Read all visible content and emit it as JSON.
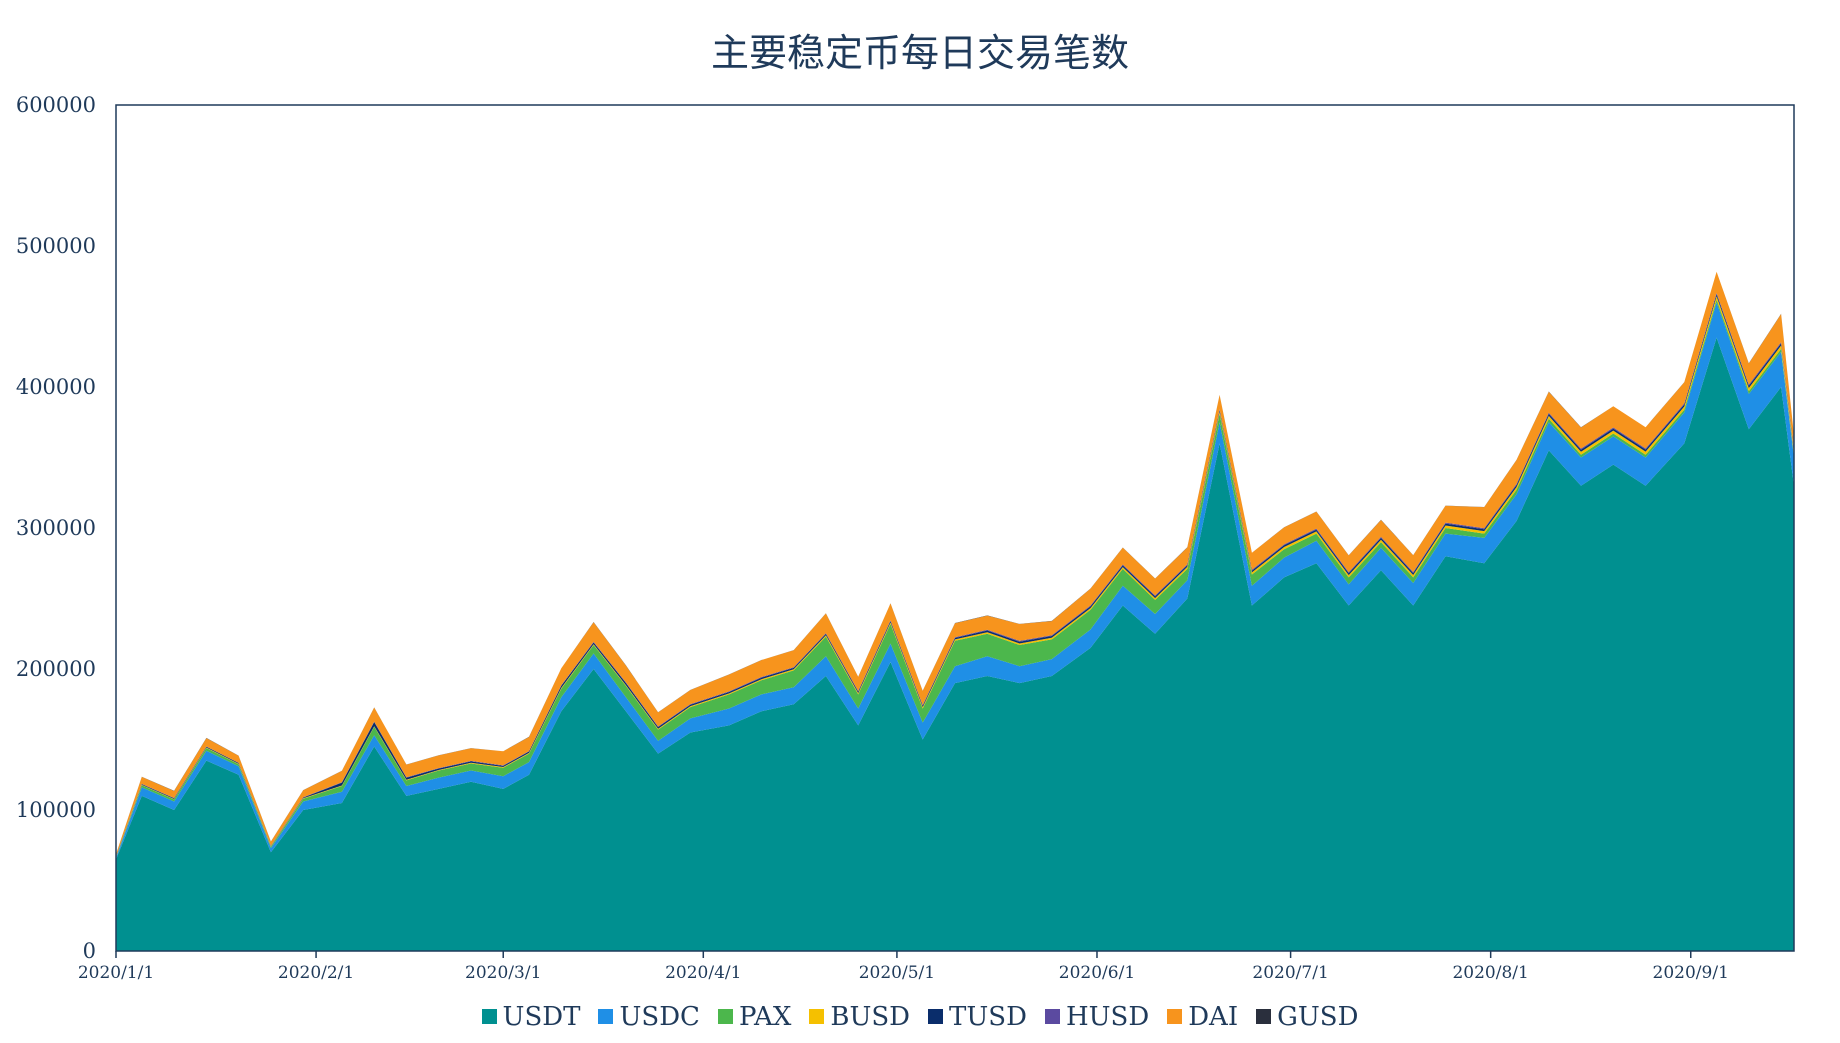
{
  "chart_data": {
    "type": "area",
    "stacked": true,
    "title": "主要稳定币每日交易笔数",
    "xlabel": "",
    "ylabel": "",
    "ylim": [
      0,
      600000
    ],
    "yticks": [
      0,
      100000,
      200000,
      300000,
      400000,
      500000,
      600000
    ],
    "xtick_labels": [
      "2020/1/1",
      "2020/2/1",
      "2020/3/1",
      "2020/4/1",
      "2020/5/1",
      "2020/6/1",
      "2020/7/1",
      "2020/8/1",
      "2020/9/1"
    ],
    "xtick_days": [
      0,
      31,
      60,
      91,
      121,
      152,
      182,
      213,
      244
    ],
    "grid": false,
    "legend_position": "bottom",
    "dates": [
      "2020-01-01",
      "2020-01-05",
      "2020-01-10",
      "2020-01-15",
      "2020-01-20",
      "2020-01-25",
      "2020-01-30",
      "2020-02-05",
      "2020-02-10",
      "2020-02-15",
      "2020-02-20",
      "2020-02-25",
      "2020-03-01",
      "2020-03-05",
      "2020-03-10",
      "2020-03-15",
      "2020-03-20",
      "2020-03-25",
      "2020-03-30",
      "2020-04-05",
      "2020-04-10",
      "2020-04-15",
      "2020-04-20",
      "2020-04-25",
      "2020-04-30",
      "2020-05-05",
      "2020-05-10",
      "2020-05-15",
      "2020-05-20",
      "2020-05-25",
      "2020-05-31",
      "2020-06-05",
      "2020-06-10",
      "2020-06-15",
      "2020-06-20",
      "2020-06-25",
      "2020-06-30",
      "2020-07-05",
      "2020-07-10",
      "2020-07-15",
      "2020-07-20",
      "2020-07-25",
      "2020-07-31",
      "2020-08-05",
      "2020-08-10",
      "2020-08-15",
      "2020-08-20",
      "2020-08-25",
      "2020-08-31",
      "2020-09-05",
      "2020-09-10",
      "2020-09-15",
      "2020-09-17"
    ],
    "series": [
      {
        "name": "USDT",
        "color": "#009090",
        "values": [
          65000,
          110000,
          100000,
          135000,
          125000,
          70000,
          100000,
          105000,
          145000,
          110000,
          115000,
          120000,
          115000,
          125000,
          170000,
          200000,
          170000,
          140000,
          155000,
          160000,
          170000,
          175000,
          195000,
          160000,
          205000,
          150000,
          190000,
          195000,
          190000,
          195000,
          215000,
          245000,
          225000,
          250000,
          360000,
          245000,
          265000,
          275000,
          245000,
          270000,
          245000,
          280000,
          275000,
          305000,
          355000,
          330000,
          345000,
          330000,
          360000,
          435000,
          370000,
          400000,
          330000
        ]
      },
      {
        "name": "USDC",
        "color": "#1f8fe6",
        "values": [
          1000,
          6000,
          6000,
          7000,
          6000,
          3000,
          6000,
          8000,
          8000,
          7000,
          8000,
          8000,
          9000,
          9000,
          10000,
          11000,
          10000,
          9000,
          10000,
          12000,
          12000,
          12000,
          14000,
          12000,
          13000,
          12000,
          12000,
          14000,
          12000,
          12000,
          13000,
          14000,
          14000,
          13000,
          15000,
          14000,
          14000,
          16000,
          15000,
          16000,
          16000,
          16000,
          18000,
          19000,
          20000,
          20000,
          20000,
          20000,
          22000,
          25000,
          25000,
          25000,
          20000
        ]
      },
      {
        "name": "PAX",
        "color": "#4cb74c",
        "values": [
          500,
          1500,
          1500,
          2000,
          1500,
          1000,
          2000,
          4000,
          6000,
          4000,
          5000,
          5000,
          6000,
          6000,
          6000,
          6000,
          8000,
          8000,
          8000,
          10000,
          10000,
          12000,
          14000,
          10000,
          14000,
          10000,
          18000,
          16000,
          15000,
          14000,
          14000,
          12000,
          10000,
          8000,
          6000,
          8000,
          6000,
          5000,
          5000,
          4000,
          4000,
          4000,
          3000,
          3000,
          2500,
          2000,
          2000,
          2000,
          2000,
          2000,
          2000,
          2000,
          1500
        ]
      },
      {
        "name": "BUSD",
        "color": "#f5c000",
        "values": [
          200,
          300,
          300,
          300,
          300,
          200,
          300,
          400,
          400,
          400,
          400,
          500,
          500,
          500,
          600,
          600,
          600,
          600,
          700,
          700,
          800,
          800,
          900,
          900,
          1000,
          1000,
          1000,
          1100,
          1100,
          1200,
          1200,
          1300,
          1300,
          1400,
          1400,
          1500,
          1500,
          1600,
          1600,
          1700,
          1700,
          1800,
          1800,
          2000,
          2000,
          2100,
          2100,
          2200,
          2200,
          2300,
          2300,
          2400,
          2000
        ]
      },
      {
        "name": "TUSD",
        "color": "#0a2d6b",
        "values": [
          300,
          500,
          500,
          500,
          500,
          300,
          500,
          2000,
          3000,
          1500,
          1000,
          1000,
          800,
          1000,
          1500,
          1200,
          1500,
          1200,
          1000,
          1000,
          1000,
          1000,
          1000,
          1000,
          1000,
          1000,
          1000,
          1200,
          1200,
          1200,
          1200,
          1200,
          1200,
          1200,
          1200,
          1200,
          1200,
          1300,
          1300,
          1300,
          1300,
          1300,
          1300,
          1400,
          1400,
          1400,
          1400,
          1400,
          1400,
          1500,
          1500,
          1500,
          1200
        ]
      },
      {
        "name": "HUSD",
        "color": "#5b4aa0",
        "values": [
          100,
          200,
          200,
          200,
          200,
          100,
          200,
          300,
          300,
          300,
          300,
          300,
          300,
          300,
          400,
          400,
          400,
          400,
          400,
          400,
          500,
          500,
          500,
          500,
          500,
          500,
          500,
          600,
          600,
          600,
          600,
          600,
          600,
          600,
          700,
          700,
          700,
          700,
          700,
          700,
          700,
          700,
          700,
          800,
          800,
          800,
          800,
          800,
          800,
          900,
          900,
          900,
          800
        ]
      },
      {
        "name": "DAI",
        "color": "#f7941d",
        "values": [
          1500,
          5000,
          5000,
          6000,
          5000,
          3000,
          5000,
          8000,
          10000,
          9000,
          9000,
          9000,
          10000,
          10000,
          12000,
          14000,
          12000,
          10000,
          10000,
          12000,
          12000,
          12000,
          14000,
          10000,
          12000,
          10000,
          10000,
          10000,
          12000,
          10000,
          12000,
          12000,
          12000,
          12000,
          10000,
          12000,
          12000,
          12000,
          12000,
          12000,
          12000,
          12000,
          15000,
          17000,
          15000,
          15000,
          15000,
          15000,
          15000,
          15000,
          15000,
          20000,
          10000
        ]
      },
      {
        "name": "GUSD",
        "color": "#2a2f3d",
        "values": [
          50,
          100,
          100,
          100,
          100,
          50,
          100,
          100,
          100,
          100,
          100,
          100,
          100,
          100,
          100,
          100,
          100,
          100,
          100,
          100,
          100,
          100,
          100,
          100,
          100,
          100,
          100,
          100,
          100,
          100,
          100,
          100,
          100,
          100,
          100,
          100,
          100,
          100,
          100,
          100,
          100,
          100,
          100,
          100,
          100,
          100,
          100,
          100,
          100,
          100,
          100,
          100,
          100
        ]
      }
    ]
  }
}
